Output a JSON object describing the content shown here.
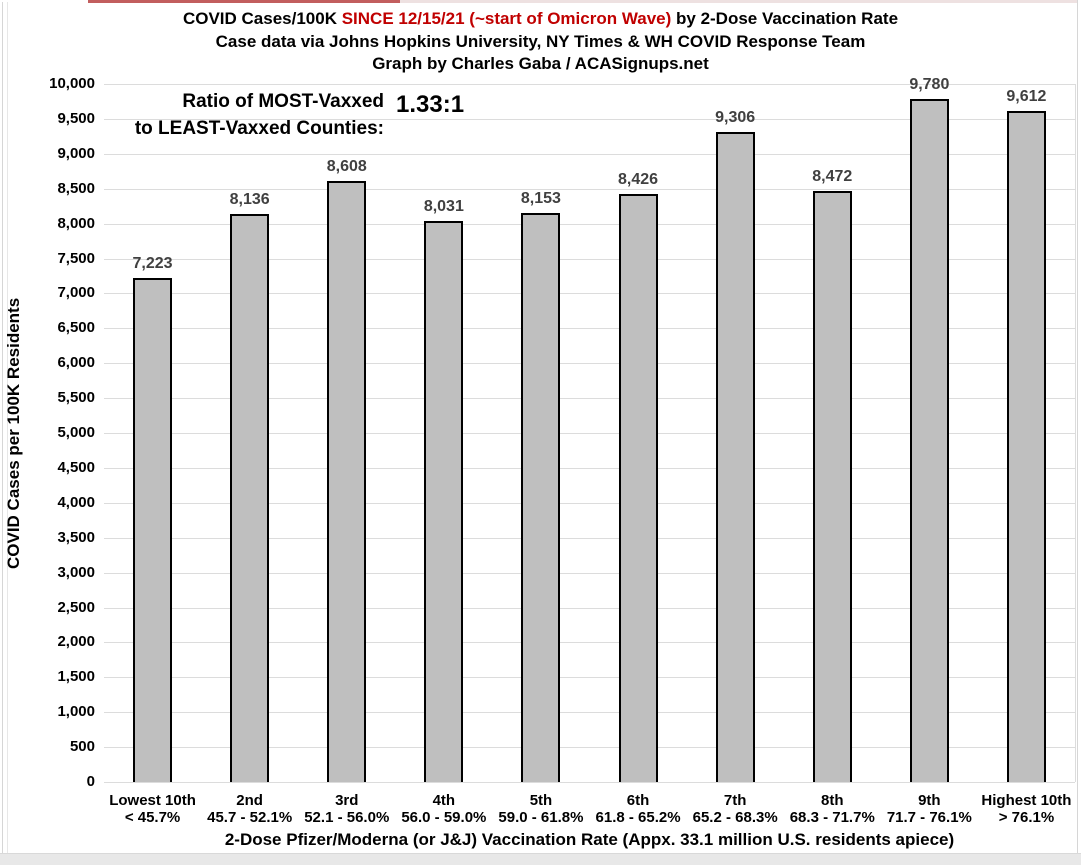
{
  "header": {
    "title_part1": "COVID Cases/100K ",
    "title_highlight": "SINCE 12/15/21 (~start of Omicron Wave)",
    "title_part2": " by 2-Dose Vaccination Rate",
    "highlight_color": "#c00000",
    "subtitle": "Case data via Johns Hopkins University, NY Times & WH COVID Response Team",
    "credit": "Graph by Charles Gaba / ACASignups.net"
  },
  "annotation": {
    "label_line1": "Ratio of MOST-Vaxxed",
    "label_line2": "to LEAST-Vaxxed Counties:",
    "value": "1.33:1"
  },
  "chart_data": {
    "type": "bar",
    "title": "COVID Cases/100K SINCE 12/15/21 (~start of Omicron Wave) by 2-Dose Vaccination Rate",
    "categories": [
      "Lowest 10th",
      "2nd",
      "3rd",
      "4th",
      "5th",
      "6th",
      "7th",
      "8th",
      "9th",
      "Highest 10th"
    ],
    "category_ranges": [
      "< 45.7%",
      "45.7 - 52.1%",
      "52.1 - 56.0%",
      "56.0 - 59.0%",
      "59.0 - 61.8%",
      "61.8 - 65.2%",
      "65.2 - 68.3%",
      "68.3 - 71.7%",
      "71.7 - 76.1%",
      "> 76.1%"
    ],
    "values": [
      7223,
      8136,
      8608,
      8031,
      8153,
      8426,
      9306,
      8472,
      9780,
      9612
    ],
    "value_labels": [
      "7,223",
      "8,136",
      "8,608",
      "8,031",
      "8,153",
      "8,426",
      "9,306",
      "8,472",
      "9,780",
      "9,612"
    ],
    "xlabel": "2-Dose Pfizer/Moderna (or  J&J) Vaccination Rate (Appx. 33.1 million U.S. residents apiece)",
    "ylabel": "COVID Cases per 100K Residents",
    "ylim": [
      0,
      10000
    ],
    "ytick_step": 500,
    "grid": "horizontal-major",
    "legend": "none",
    "bar_fill": "#bfbfbf",
    "bar_border": "#000000",
    "gridline_color": "#dcdcdc",
    "value_label_color": "#404040",
    "tick_label_color": "#000000"
  }
}
